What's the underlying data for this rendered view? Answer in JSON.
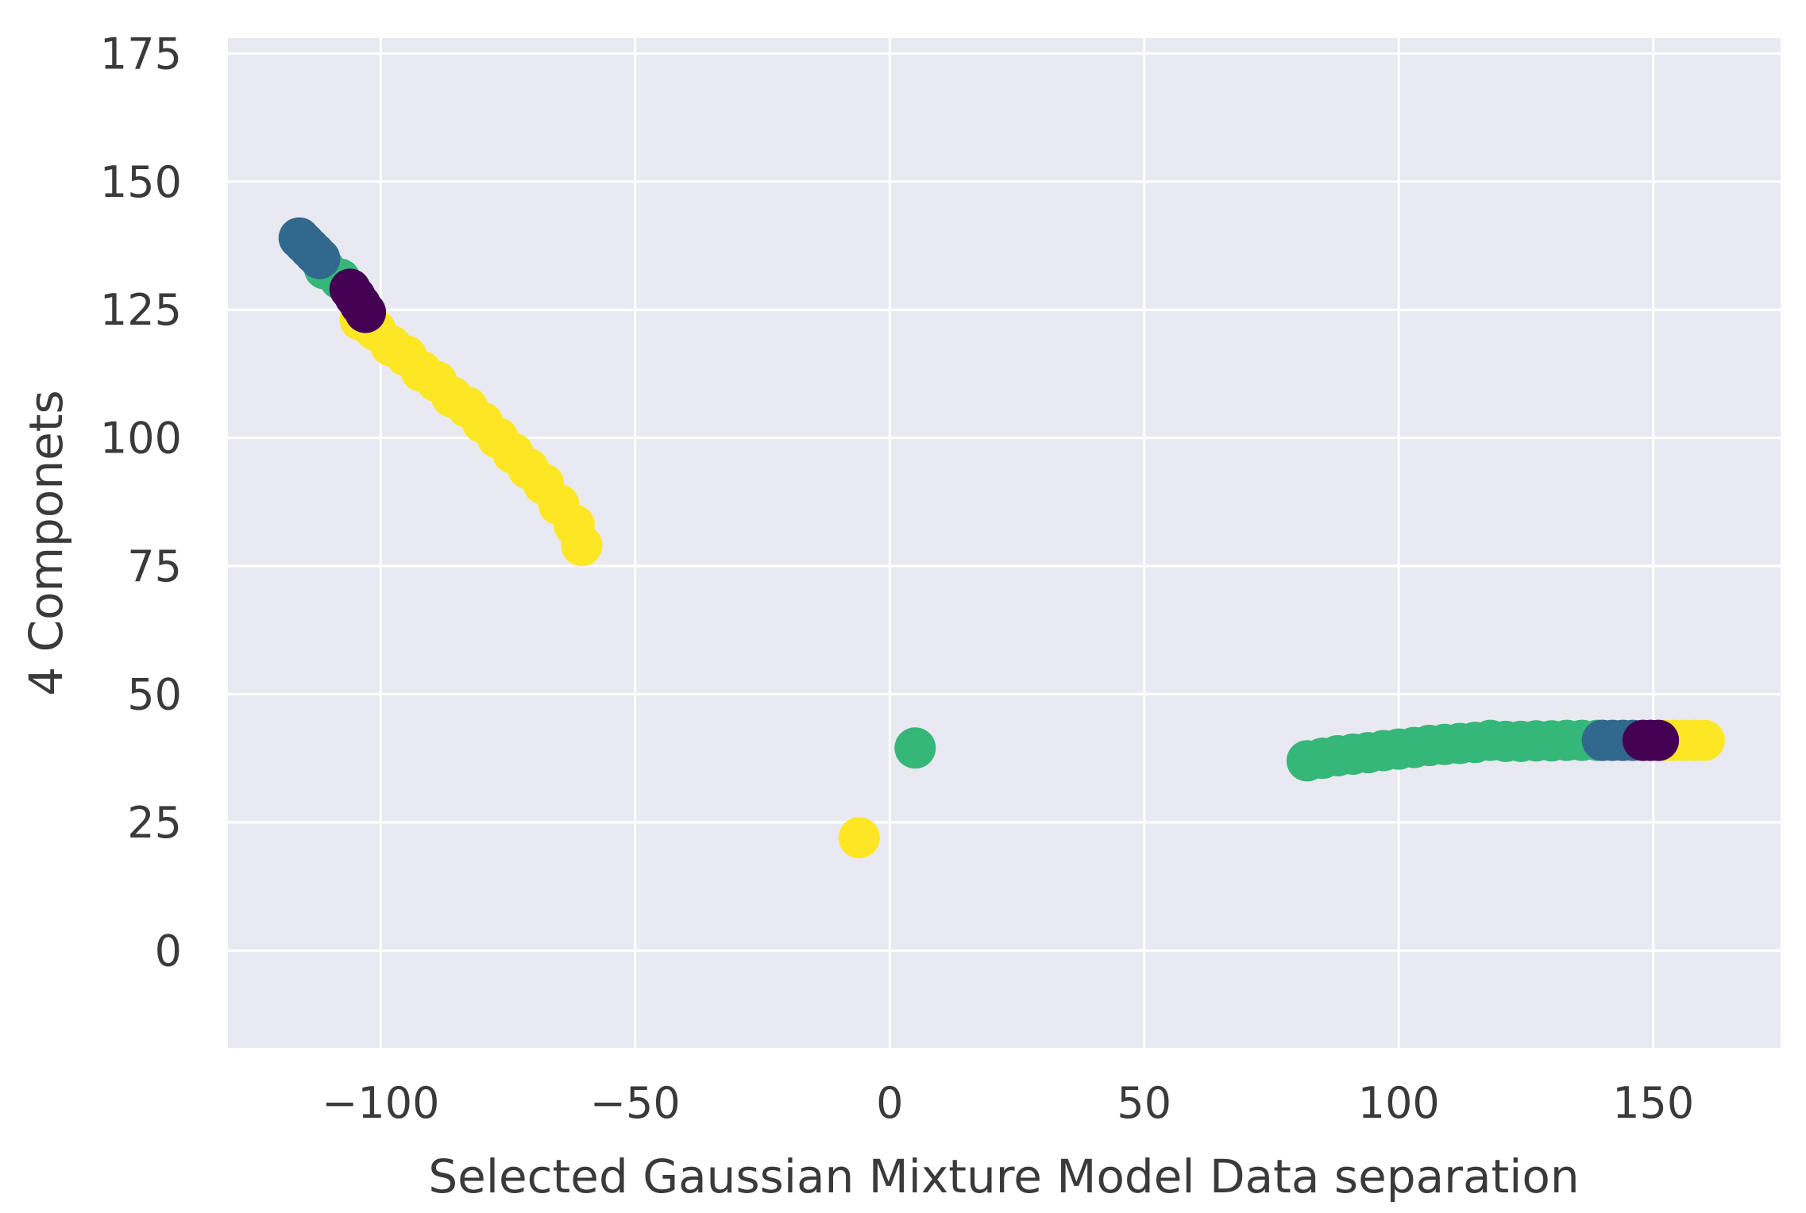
{
  "chart_data": {
    "type": "scatter",
    "title": "",
    "xlabel": "Selected Gaussian Mixture Model Data separation",
    "ylabel": "4 Componets",
    "xlim": [
      -130,
      175
    ],
    "ylim": [
      -19,
      178
    ],
    "grid": true,
    "legend": "none",
    "background_color": "#e9e9f1",
    "grid_color": "#ffffff",
    "xticks": [
      -100,
      -50,
      0,
      50,
      100,
      150
    ],
    "xtick_labels": [
      "−100",
      "−50",
      "0",
      "50",
      "100",
      "150"
    ],
    "yticks": [
      0,
      25,
      50,
      75,
      100,
      125,
      150,
      175
    ],
    "ytick_labels": [
      "0",
      "25",
      "50",
      "75",
      "100",
      "125",
      "150",
      "175"
    ],
    "clusters": [
      {
        "color": "#fde725",
        "points": [
          [
            -104,
            123
          ],
          [
            -101,
            121
          ],
          [
            -98,
            118
          ],
          [
            -95,
            116
          ],
          [
            -92,
            113
          ],
          [
            -89,
            111
          ],
          [
            -86,
            108
          ],
          [
            -83,
            106
          ],
          [
            -80,
            103
          ],
          [
            -77,
            100
          ],
          [
            -74,
            97
          ],
          [
            -71,
            94
          ],
          [
            -68,
            91
          ],
          [
            -65,
            87
          ],
          [
            -62,
            83
          ],
          [
            -60.5,
            79
          ],
          [
            -6,
            22
          ],
          [
            152,
            41
          ],
          [
            154,
            41
          ],
          [
            156,
            41
          ],
          [
            158,
            41
          ],
          [
            160,
            41
          ]
        ]
      },
      {
        "color": "#35b779",
        "points": [
          [
            -111,
            133
          ],
          [
            -108,
            131
          ],
          [
            5,
            39.5
          ],
          [
            82,
            37
          ],
          [
            85,
            37.5
          ],
          [
            88,
            38
          ],
          [
            91,
            38.3
          ],
          [
            94,
            38.6
          ],
          [
            97,
            39
          ],
          [
            100,
            39.3
          ],
          [
            103,
            39.6
          ],
          [
            106,
            40
          ],
          [
            109,
            40.2
          ],
          [
            112,
            40.4
          ],
          [
            115,
            40.6
          ],
          [
            118,
            41
          ],
          [
            121,
            40.8
          ],
          [
            124,
            40.8
          ],
          [
            127,
            40.9
          ],
          [
            130,
            40.9
          ],
          [
            133,
            41
          ],
          [
            136,
            41
          ],
          [
            139,
            41
          ]
        ]
      },
      {
        "color": "#31688e",
        "points": [
          [
            -116,
            139
          ],
          [
            -115,
            138
          ],
          [
            -114,
            137
          ],
          [
            -113,
            136
          ],
          [
            -112,
            135
          ],
          [
            140,
            41
          ],
          [
            142,
            41
          ],
          [
            144,
            41
          ],
          [
            146,
            41
          ]
        ]
      },
      {
        "color": "#440154",
        "points": [
          [
            -106,
            129
          ],
          [
            -105,
            127.5
          ],
          [
            -104,
            126
          ],
          [
            -103,
            124.5
          ],
          [
            148,
            41
          ],
          [
            149.5,
            41
          ],
          [
            151,
            41
          ]
        ]
      }
    ]
  }
}
